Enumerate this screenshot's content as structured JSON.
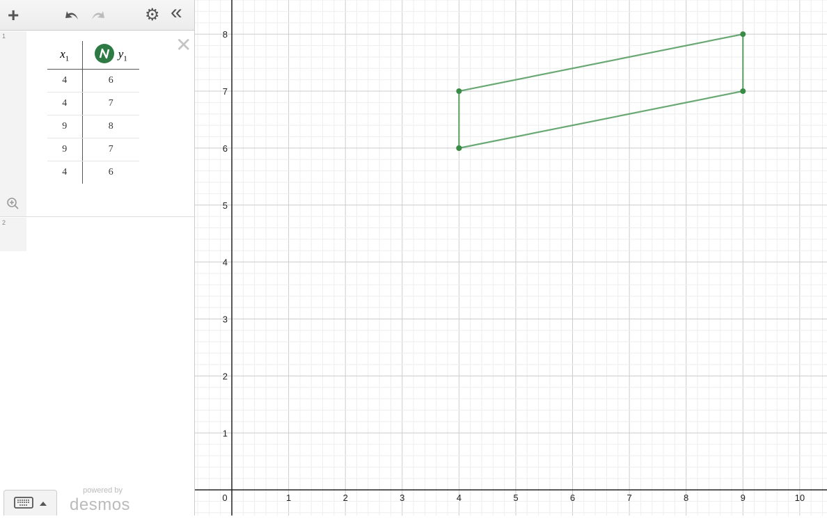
{
  "toolbar": {
    "add": "+",
    "settings": "⚙",
    "collapse": "«"
  },
  "expressions": [
    {
      "index": "1",
      "table": {
        "headers": [
          {
            "name": "x",
            "sub": "1"
          },
          {
            "name": "y",
            "sub": "1"
          }
        ],
        "rows": [
          [
            "4",
            "6"
          ],
          [
            "4",
            "7"
          ],
          [
            "9",
            "8"
          ],
          [
            "9",
            "7"
          ],
          [
            "4",
            "6"
          ]
        ]
      },
      "color": "#388c46",
      "style": "points-and-lines"
    },
    {
      "index": "2"
    }
  ],
  "footer": {
    "powered_by": "powered by",
    "brand": "desmos"
  },
  "graph": {
    "x_ticks": [
      "0",
      "1",
      "2",
      "3",
      "4",
      "5",
      "6",
      "7",
      "8",
      "9",
      "10"
    ],
    "y_ticks": [
      "1",
      "2",
      "3",
      "4",
      "5",
      "6",
      "7",
      "8"
    ],
    "xlim": [
      -0.65,
      10.48
    ],
    "ylim": [
      -0.45,
      8.6
    ],
    "grid": true
  }
}
